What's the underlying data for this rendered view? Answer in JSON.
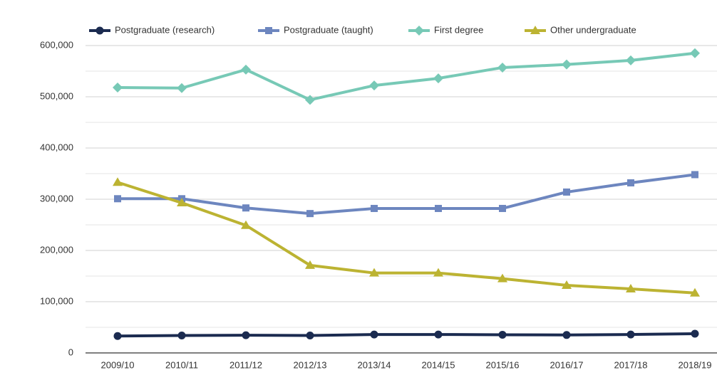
{
  "chart_data": {
    "type": "line",
    "categories": [
      "2009/10",
      "2010/11",
      "2011/12",
      "2012/13",
      "2013/14",
      "2014/15",
      "2015/16",
      "2016/17",
      "2017/18",
      "2018/19"
    ],
    "series": [
      {
        "name": "Postgraduate (research)",
        "color": "#1b2b50",
        "marker": "circle",
        "values": [
          33000,
          34000,
          34500,
          34000,
          36000,
          36000,
          35500,
          35000,
          36000,
          37500
        ]
      },
      {
        "name": "Postgraduate (taught)",
        "color": "#6d86bf",
        "marker": "square",
        "values": [
          301000,
          301000,
          283000,
          272000,
          282000,
          282000,
          282000,
          314000,
          332000,
          348000
        ]
      },
      {
        "name": "First degree",
        "color": "#77c9b6",
        "marker": "diamond",
        "values": [
          518000,
          517000,
          553000,
          494000,
          522000,
          536000,
          557000,
          563000,
          571000,
          585000
        ]
      },
      {
        "name": "Other undergraduate",
        "color": "#bcb332",
        "marker": "triangle",
        "values": [
          333000,
          293000,
          249000,
          171000,
          156000,
          156000,
          145000,
          132000,
          125000,
          117000
        ]
      }
    ],
    "ylim": [
      0,
      600000
    ],
    "yticks": [
      {
        "value": 0,
        "label": "0"
      },
      {
        "value": 100000,
        "label": "100,000"
      },
      {
        "value": 200000,
        "label": "200,000"
      },
      {
        "value": 300000,
        "label": "300,000"
      },
      {
        "value": 400000,
        "label": "400,000"
      },
      {
        "value": 500000,
        "label": "500,000"
      },
      {
        "value": 600000,
        "label": "600,000"
      }
    ],
    "minor_yticks": [
      50000,
      150000,
      250000,
      350000,
      450000,
      550000
    ],
    "grid": true,
    "legend": "top"
  }
}
